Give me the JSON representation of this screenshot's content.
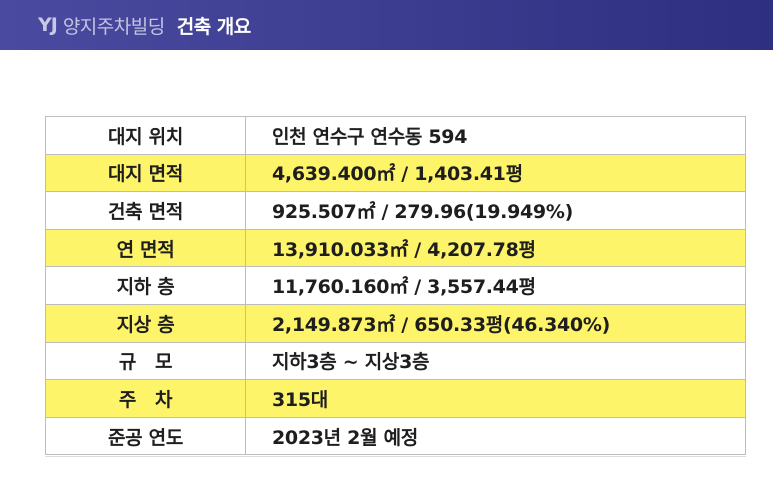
{
  "header": {
    "logo": "YJ",
    "brand": "양지주차빌딩",
    "title": "건축 개요"
  },
  "colors": {
    "header_bg": "#3b3b8f",
    "highlight_row": "#fdf46a",
    "border": "#bdbdbd"
  },
  "rows": [
    {
      "label": "대지 위치",
      "value": "인천 연수구 연수동 594",
      "highlight": false
    },
    {
      "label": "대지 면적",
      "value": "4,639.400㎡ / 1,403.41평",
      "highlight": true
    },
    {
      "label": "건축 면적",
      "value": "925.507㎡ / 279.96(19.949%)",
      "highlight": false
    },
    {
      "label": "연 면적",
      "value": "13,910.033㎡ / 4,207.78평",
      "highlight": true
    },
    {
      "label": "지하 층",
      "value": "11,760.160㎡ / 3,557.44평",
      "highlight": false
    },
    {
      "label": "지상 층",
      "value": "2,149.873㎡ / 650.33평(46.340%)",
      "highlight": true
    },
    {
      "label": "규   모",
      "value": "지하3층 ~ 지상3층",
      "highlight": false
    },
    {
      "label": "주   차",
      "value": "315대",
      "highlight": true
    },
    {
      "label": "준공 연도",
      "value": "2023년 2월 예정",
      "highlight": false
    }
  ]
}
